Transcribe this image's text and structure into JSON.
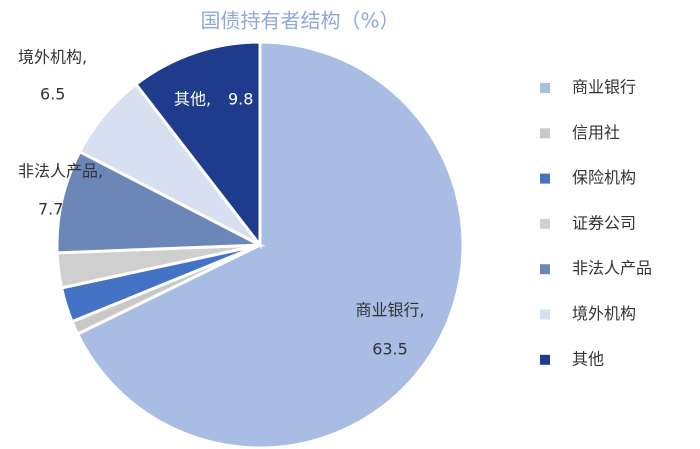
{
  "chart_data": {
    "type": "pie",
    "title": "国债持有者结构（%）",
    "categories": [
      "商业银行",
      "信用社",
      "保险机构",
      "证券公司",
      "非法人产品",
      "境外机构",
      "其他"
    ],
    "values": [
      63.5,
      1.0,
      2.6,
      2.6,
      7.7,
      6.5,
      9.8
    ],
    "colors": [
      "#a9bce4",
      "#c8c8c8",
      "#4472c4",
      "#cfcfcf",
      "#6b87b8",
      "#d6e0f0",
      "#1f3b8c"
    ],
    "label_names": [
      "商业银行,",
      null,
      null,
      null,
      "非法人产品,",
      "境外机构,",
      "其他,"
    ],
    "value_labels": [
      "63.5",
      null,
      null,
      null,
      "7.7",
      "6.5",
      "9.8"
    ],
    "legend": "right"
  }
}
